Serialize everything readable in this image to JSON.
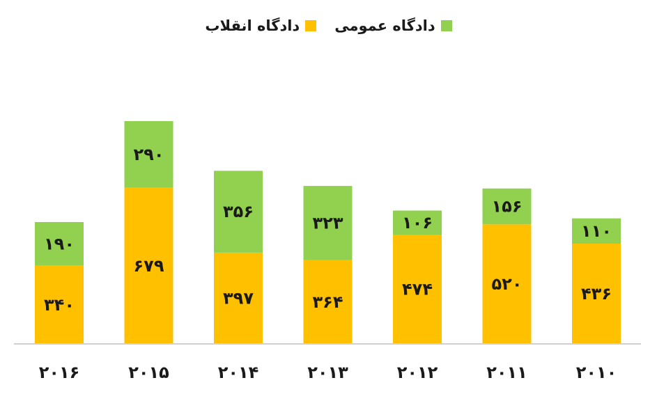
{
  "chart_data": {
    "type": "bar",
    "stacked": true,
    "categories": [
      "۲۰۱۶",
      "۲۰۱۵",
      "۲۰۱۴",
      "۲۰۱۳",
      "۲۰۱۲",
      "۲۰۱۱",
      "۲۰۱۰"
    ],
    "series": [
      {
        "name": "دادگاه انقلاب",
        "color": "#FFC000",
        "values": [
          340,
          679,
          397,
          364,
          474,
          520,
          436
        ],
        "labels": [
          "۳۴۰",
          "۶۷۹",
          "۳۹۷",
          "۳۶۴",
          "۴۷۴",
          "۵۲۰",
          "۴۳۶"
        ]
      },
      {
        "name": "دادگاه عمومی",
        "color": "#92D050",
        "values": [
          190,
          290,
          356,
          323,
          106,
          156,
          110
        ],
        "labels": [
          "۱۹۰",
          "۲۹۰",
          "۳۵۶",
          "۳۲۳",
          "۱۰۶",
          "۱۵۶",
          "۱۱۰"
        ]
      }
    ],
    "legend_position": "top",
    "grid": false
  }
}
